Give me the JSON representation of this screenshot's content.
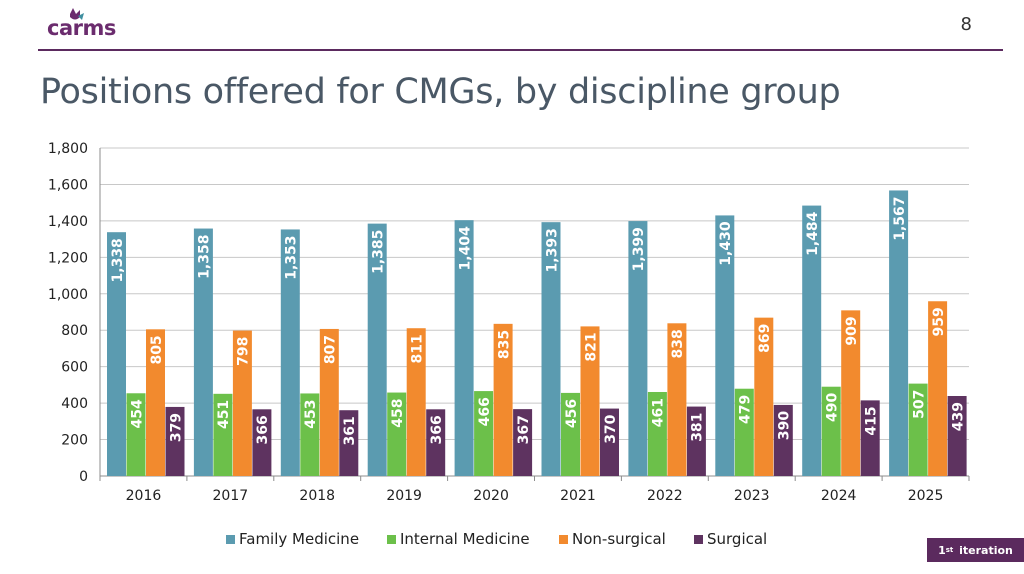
{
  "header": {
    "brand": "carms",
    "page_number": "8",
    "badge_sup": "st",
    "badge_prefix": "1",
    "badge_text": "iteration"
  },
  "colors": {
    "Family Medicine": "#5b9bb0",
    "Internal Medicine": "#6cc04a",
    "Non-surgical": "#f28a2e",
    "Surgical": "#5e3360",
    "brand_purple": "#5b2a5e",
    "brand_teal": "#3f8fa0"
  },
  "chart_data": {
    "type": "bar",
    "title": "Positions offered for CMGs, by discipline group",
    "categories": [
      "2016",
      "2017",
      "2018",
      "2019",
      "2020",
      "2021",
      "2022",
      "2023",
      "2024",
      "2025"
    ],
    "series": [
      {
        "name": "Family Medicine",
        "values": [
          1338,
          1358,
          1353,
          1385,
          1404,
          1393,
          1399,
          1430,
          1484,
          1567
        ]
      },
      {
        "name": "Internal Medicine",
        "values": [
          454,
          451,
          453,
          458,
          466,
          456,
          461,
          479,
          490,
          507
        ]
      },
      {
        "name": "Non-surgical",
        "values": [
          805,
          798,
          807,
          811,
          835,
          821,
          838,
          869,
          909,
          959
        ]
      },
      {
        "name": "Surgical",
        "values": [
          379,
          366,
          361,
          366,
          367,
          370,
          381,
          390,
          415,
          439
        ]
      }
    ],
    "ylim": [
      0,
      1800
    ],
    "yticks": [
      0,
      200,
      400,
      600,
      800,
      1000,
      1200,
      1400,
      1600,
      1800
    ],
    "ytick_labels": [
      "0",
      "200",
      "400",
      "600",
      "800",
      "1,000",
      "1,200",
      "1,400",
      "1,600",
      "1,800"
    ],
    "data_labels": [
      [
        "1,338",
        "1,358",
        "1,353",
        "1,385",
        "1,404",
        "1,393",
        "1,399",
        "1,430",
        "1,484",
        "1,567"
      ],
      [
        "454",
        "451",
        "453",
        "458",
        "466",
        "456",
        "461",
        "479",
        "490",
        "507"
      ],
      [
        "805",
        "798",
        "807",
        "811",
        "835",
        "821",
        "838",
        "869",
        "909",
        "959"
      ],
      [
        "379",
        "366",
        "361",
        "366",
        "367",
        "370",
        "381",
        "390",
        "415",
        "439"
      ]
    ],
    "grid": true,
    "legend": "bottom"
  }
}
